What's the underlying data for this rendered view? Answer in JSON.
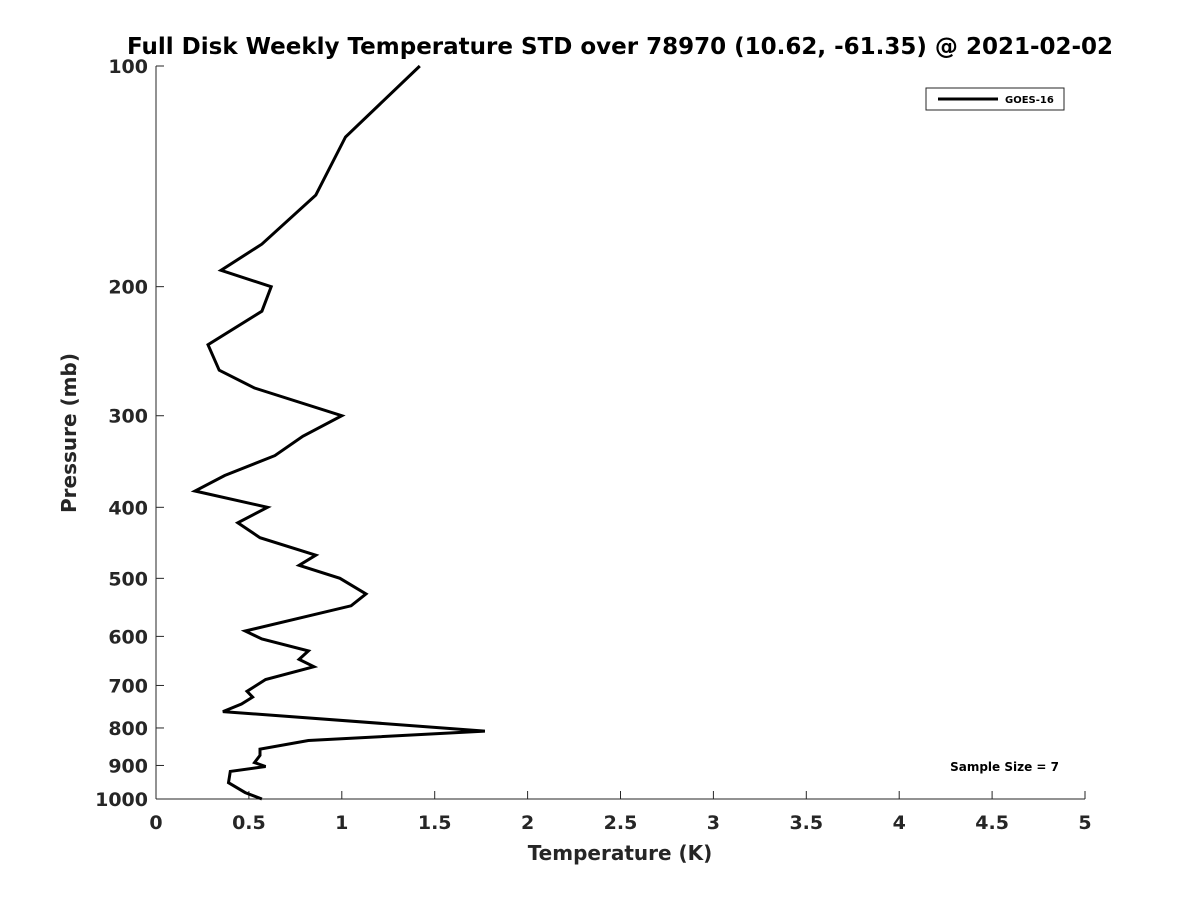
{
  "chart_data": {
    "type": "line",
    "title": "Full Disk Weekly Temperature STD over 78970 (10.62, -61.35) @ 2021-02-02",
    "xlabel": "Temperature (K)",
    "ylabel": "Pressure (mb)",
    "xlim": [
      0,
      5
    ],
    "ylim": [
      100,
      1000
    ],
    "yscale": "log",
    "y_reversed": true,
    "x_ticks": [
      0,
      0.5,
      1,
      1.5,
      2,
      2.5,
      3,
      3.5,
      4,
      4.5,
      5
    ],
    "x_tick_labels": [
      "0",
      "0.5",
      "1",
      "1.5",
      "2",
      "2.5",
      "3",
      "3.5",
      "4",
      "4.5",
      "5"
    ],
    "y_ticks": [
      100,
      200,
      300,
      400,
      500,
      600,
      700,
      800,
      900,
      1000
    ],
    "y_tick_labels": [
      "100",
      "200",
      "300",
      "400",
      "500",
      "600",
      "700",
      "800",
      "900",
      "1000"
    ],
    "legend_position": "top-right",
    "annotation": "Sample Size = 7",
    "series": [
      {
        "name": "GOES-16",
        "color": "#000000",
        "points": [
          [
            1.42,
            100
          ],
          [
            1.02,
            125
          ],
          [
            0.86,
            150
          ],
          [
            0.57,
            175
          ],
          [
            0.35,
            190
          ],
          [
            0.62,
            200
          ],
          [
            0.57,
            216
          ],
          [
            0.28,
            240
          ],
          [
            0.34,
            260
          ],
          [
            0.53,
            275
          ],
          [
            1.0,
            300
          ],
          [
            0.79,
            320
          ],
          [
            0.64,
            340
          ],
          [
            0.37,
            362
          ],
          [
            0.21,
            380
          ],
          [
            0.6,
            400
          ],
          [
            0.44,
            420
          ],
          [
            0.56,
            440
          ],
          [
            0.86,
            465
          ],
          [
            0.77,
            480
          ],
          [
            0.99,
            500
          ],
          [
            1.13,
            525
          ],
          [
            1.05,
            545
          ],
          [
            0.48,
            590
          ],
          [
            0.57,
            605
          ],
          [
            0.82,
            628
          ],
          [
            0.77,
            645
          ],
          [
            0.85,
            660
          ],
          [
            0.59,
            687
          ],
          [
            0.49,
            713
          ],
          [
            0.52,
            726
          ],
          [
            0.46,
            742
          ],
          [
            0.36,
            760
          ],
          [
            1.77,
            808
          ],
          [
            0.82,
            832
          ],
          [
            0.56,
            855
          ],
          [
            0.56,
            872
          ],
          [
            0.53,
            892
          ],
          [
            0.59,
            903
          ],
          [
            0.4,
            917
          ],
          [
            0.39,
            950
          ],
          [
            0.48,
            980
          ],
          [
            0.57,
            1000
          ]
        ]
      }
    ]
  }
}
